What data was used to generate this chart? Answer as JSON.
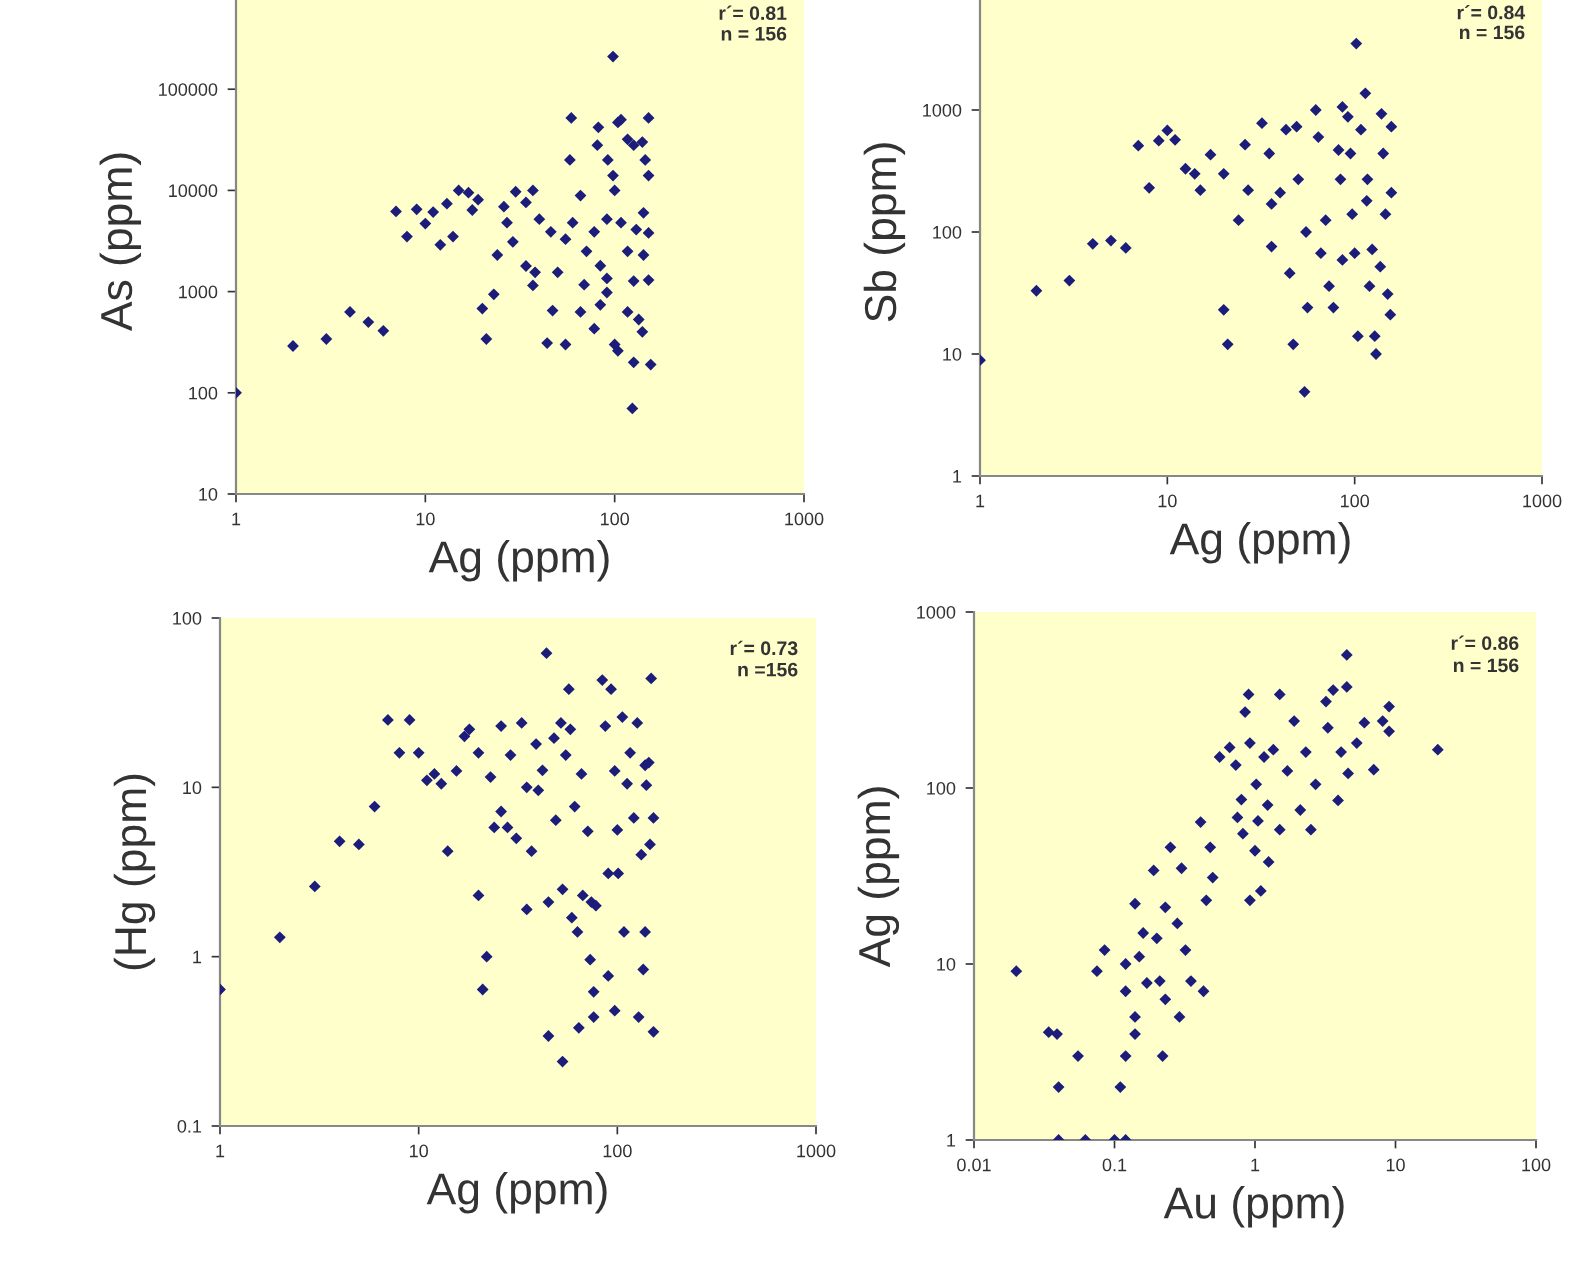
{
  "chart_data": [
    {
      "type": "scatter",
      "xlabel": "Ag (ppm)",
      "ylabel": "As (ppm)",
      "log": "xy",
      "marker": "diamond",
      "grid": false,
      "xlim": [
        1,
        1000
      ],
      "xticks": [
        1,
        10,
        100,
        1000
      ],
      "ylim": [
        10,
        1000000
      ],
      "yticks": [
        10,
        100,
        1000,
        10000,
        100000
      ],
      "annotations": [
        "r´= 0.81",
        "n = 156"
      ],
      "series": [
        {
          "color": "#1c1c7a",
          "x": [
            1,
            2,
            3,
            4,
            5,
            6,
            7,
            8,
            9,
            10,
            11,
            12,
            13,
            14,
            15,
            98,
            59,
            58,
            66,
            82,
            81,
            92,
            104,
            108,
            117,
            126,
            140,
            145,
            151,
            151,
            98,
            100,
            91,
            108,
            130,
            142,
            151,
            117,
            142,
            126,
            151,
            117,
            134,
            140,
            126,
            155,
            124,
            100,
            104,
            91,
            84,
            78,
            69,
            66,
            55,
            47,
            50,
            55,
            60,
            46,
            40,
            34,
            37,
            30,
            26,
            27,
            29,
            24,
            23,
            20,
            21,
            34,
            38,
            44,
            37,
            71,
            78,
            84,
            91,
            17.7,
            19,
            16.9
          ],
          "values": [
            100,
            290,
            340,
            630,
            500,
            410,
            6200,
            3500,
            6500,
            4700,
            6100,
            2900,
            7400,
            3500,
            10000,
            210000,
            52000,
            20000,
            8900,
            42000,
            28000,
            20000,
            47000,
            50000,
            32000,
            28000,
            30000,
            20000,
            52000,
            14000,
            14000,
            10000,
            5200,
            4800,
            4100,
            6000,
            3800,
            2500,
            2300,
            1270,
            1300,
            630,
            530,
            400,
            200,
            190,
            70,
            300,
            260,
            980,
            740,
            430,
            1170,
            630,
            300,
            650,
            1550,
            3300,
            4800,
            3900,
            5200,
            7600,
            10000,
            9700,
            6900,
            4800,
            3100,
            2300,
            940,
            680,
            340,
            1790,
            1550,
            310,
            1150,
            2500,
            3900,
            1800,
            1350,
            6400,
            8100,
            9500
          ]
        }
      ]
    },
    {
      "type": "scatter",
      "xlabel": "Ag (ppm)",
      "ylabel": "Sb (ppm)",
      "log": "xy",
      "marker": "diamond",
      "grid": false,
      "xlim": [
        1,
        1000
      ],
      "xticks": [
        1,
        10,
        100,
        1000
      ],
      "ylim": [
        1,
        10000
      ],
      "yticks": [
        1,
        10,
        100,
        1000
      ],
      "annotations": [
        "r´= 0.84",
        "n = 156"
      ],
      "series": [
        {
          "color": "#1c1c7a",
          "x": [
            1,
            2,
            3,
            4,
            5,
            6,
            7,
            8,
            9,
            10,
            11,
            12.5,
            14,
            15,
            17,
            20,
            20,
            21,
            24,
            26,
            27,
            32,
            35,
            36,
            36,
            40,
            43,
            45,
            47,
            49,
            50,
            55,
            56,
            54,
            62,
            64,
            66,
            70,
            73,
            77,
            82,
            86,
            92,
            97,
            100,
            104,
            108,
            117,
            124,
            128,
            139,
            142,
            146,
            150,
            157,
            157,
            155,
            130,
            114,
            102,
            95,
            84,
            116,
            137,
            120,
            86
          ],
          "values": [
            8.9,
            33,
            40,
            80,
            85,
            74,
            510,
            230,
            560,
            680,
            570,
            330,
            300,
            220,
            430,
            300,
            23,
            12,
            125,
            520,
            220,
            780,
            440,
            170,
            76,
            210,
            690,
            46,
            12,
            730,
            270,
            100,
            24,
            4.9,
            1000,
            600,
            67,
            125,
            36,
            24,
            470,
            59,
            880,
            140,
            67,
            14,
            690,
            270,
            72,
            14,
            930,
            440,
            140,
            31,
            730,
            210,
            21,
            10,
            1370,
            3500,
            440,
            270,
            180,
            52,
            36,
            1060
          ]
        }
      ]
    },
    {
      "type": "scatter",
      "xlabel": "Ag (ppm)",
      "ylabel": "(Hg (ppm)",
      "log": "xy",
      "marker": "diamond",
      "grid": false,
      "xlim": [
        1,
        1000
      ],
      "xticks": [
        1,
        10,
        100,
        1000
      ],
      "ylim": [
        0.1,
        100
      ],
      "yticks": [
        0.1,
        1,
        10,
        100
      ],
      "annotations": [
        "r´= 0.73",
        "n =156"
      ],
      "series": [
        {
          "color": "#1c1c7a",
          "x": [
            1,
            2,
            3,
            4,
            5,
            6,
            7,
            8,
            9,
            10,
            11,
            12,
            13,
            14,
            15.5,
            17,
            18,
            20,
            20,
            22,
            21,
            23,
            24,
            26,
            26,
            28,
            29,
            31,
            33,
            35,
            37,
            35,
            39,
            40,
            42,
            44,
            45,
            45,
            48,
            49,
            52,
            53,
            53,
            55,
            57,
            58,
            59,
            61,
            63,
            64,
            66,
            67,
            71,
            73,
            74,
            76,
            76,
            78,
            84,
            87,
            90,
            90,
            93,
            97,
            100,
            101,
            97,
            106,
            108,
            112,
            116,
            121,
            126,
            132,
            138,
            144,
            146,
            148,
            152,
            152,
            135,
            138,
            128,
            140
          ],
          "values": [
            0.64,
            1.3,
            2.6,
            4.8,
            4.6,
            7.7,
            25,
            16,
            25,
            16,
            11,
            12,
            10.5,
            4.2,
            12.5,
            20,
            22,
            16,
            2.3,
            1,
            0.64,
            11.5,
            5.8,
            23,
            7.2,
            5.8,
            15.5,
            5,
            24,
            10,
            4.2,
            1.9,
            18,
            9.6,
            12.6,
            62,
            2.1,
            0.34,
            19.5,
            6.4,
            24,
            2.5,
            0.24,
            15.5,
            38,
            22,
            1.7,
            7.7,
            1.4,
            0.38,
            12,
            2.3,
            5.5,
            0.96,
            2.1,
            0.44,
            0.62,
            2,
            43,
            23,
            3.1,
            0.77,
            38,
            12.5,
            5.6,
            3.1,
            0.48,
            26,
            1.4,
            10.5,
            16,
            6.6,
            24,
            4,
            13.5,
            14,
            4.6,
            44,
            0.36,
            6.6,
            0.84,
            1.4,
            0.44,
            10.3
          ]
        }
      ]
    },
    {
      "type": "scatter",
      "xlabel": "Au (ppm)",
      "ylabel": "Ag (ppm)",
      "log": "xy",
      "marker": "diamond",
      "grid": false,
      "xlim": [
        0.01,
        100
      ],
      "xticks": [
        0.01,
        0.1,
        1,
        10,
        100
      ],
      "ylim": [
        1,
        1000
      ],
      "yticks": [
        1,
        10,
        100,
        1000
      ],
      "annotations": [
        "r´= 0.86",
        "n = 156"
      ],
      "series": [
        {
          "color": "#1c1c7a",
          "x": [
            0.02,
            0.034,
            0.039,
            0.04,
            0.04,
            0.055,
            0.062,
            0.075,
            0.085,
            0.1,
            0.11,
            0.12,
            0.12,
            0.12,
            0.12,
            0.14,
            0.14,
            0.14,
            0.15,
            0.16,
            0.17,
            0.19,
            0.2,
            0.21,
            0.22,
            0.23,
            0.23,
            0.25,
            0.28,
            0.29,
            0.3,
            0.32,
            0.35,
            0.41,
            0.43,
            0.45,
            0.48,
            0.5,
            0.56,
            0.66,
            0.73,
            0.75,
            0.8,
            0.82,
            0.85,
            0.9,
            0.92,
            0.92,
            1,
            1.02,
            1.05,
            1.1,
            1.16,
            1.23,
            1.25,
            1.35,
            1.5,
            1.5,
            1.7,
            1.9,
            2.1,
            2.3,
            2.5,
            2.7,
            3.2,
            3.3,
            3.6,
            3.9,
            4.1,
            4.5,
            4.5,
            4.6,
            5.3,
            6,
            7,
            8.1,
            9,
            9,
            20
          ],
          "values": [
            9.1,
            4.1,
            4,
            2,
            1,
            3,
            1,
            9.1,
            12,
            1,
            2,
            1,
            10,
            3,
            7,
            4,
            5,
            22,
            11,
            15,
            7.8,
            34,
            14,
            8,
            3,
            21,
            6.3,
            46,
            17,
            5,
            35,
            12,
            8,
            64,
            7,
            23,
            46,
            31,
            150,
            170,
            135,
            68,
            86,
            55,
            270,
            340,
            180,
            23,
            44,
            105,
            65,
            26,
            150,
            80,
            38,
            165,
            340,
            58,
            125,
            240,
            75,
            160,
            58,
            105,
            310,
            220,
            360,
            85,
            160,
            570,
            375,
            121,
            180,
            235,
            127,
            240,
            290,
            210,
            165
          ]
        }
      ]
    }
  ]
}
